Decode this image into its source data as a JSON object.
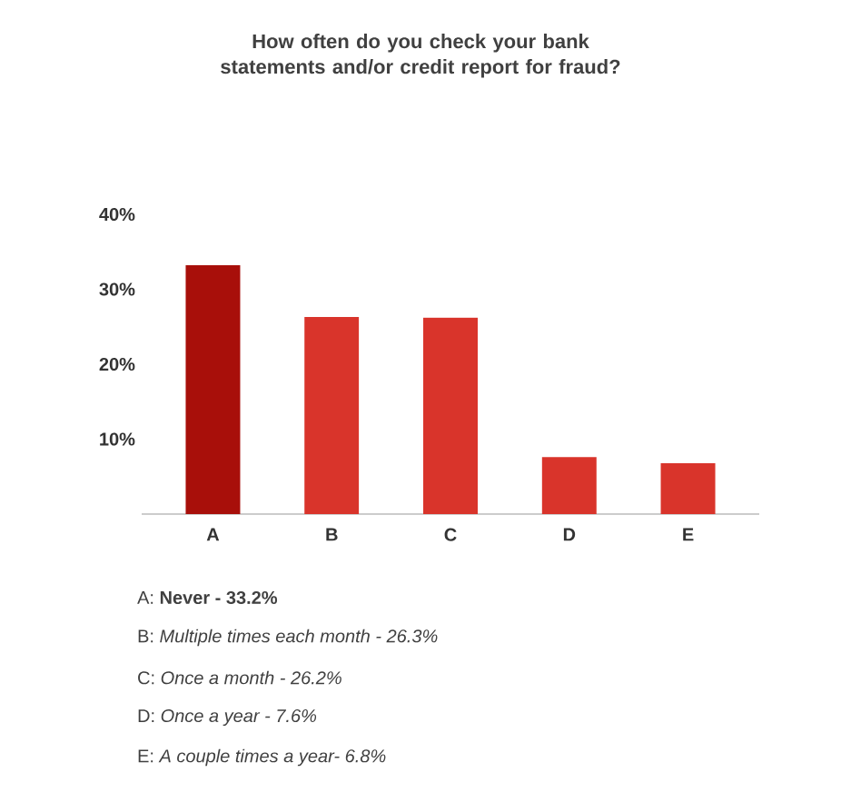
{
  "chart_data": {
    "type": "bar",
    "title": "How often do you check your bank statements and/or credit report for fraud?",
    "categories": [
      "A",
      "B",
      "C",
      "D",
      "E"
    ],
    "values": [
      33.2,
      26.3,
      26.2,
      7.6,
      6.8
    ],
    "colors": [
      "#a80f0a",
      "#d9342b",
      "#d9342b",
      "#d9342b",
      "#d9342b"
    ],
    "ylim": [
      0,
      40
    ],
    "yticks": [
      {
        "value": 10,
        "label": "10%"
      },
      {
        "value": 20,
        "label": "20%"
      },
      {
        "value": 30,
        "label": "30%"
      },
      {
        "value": 40,
        "label": "40%"
      }
    ],
    "grid": false,
    "annotations": [
      "A: **Never - 33.2%**",
      "B: *Multiple times each month - 26.3%*",
      "C: *Once a month - 26.2%*",
      "D: *Once a year - 7.6%*",
      "E: *A couple times a year- 6.8%*"
    ]
  }
}
